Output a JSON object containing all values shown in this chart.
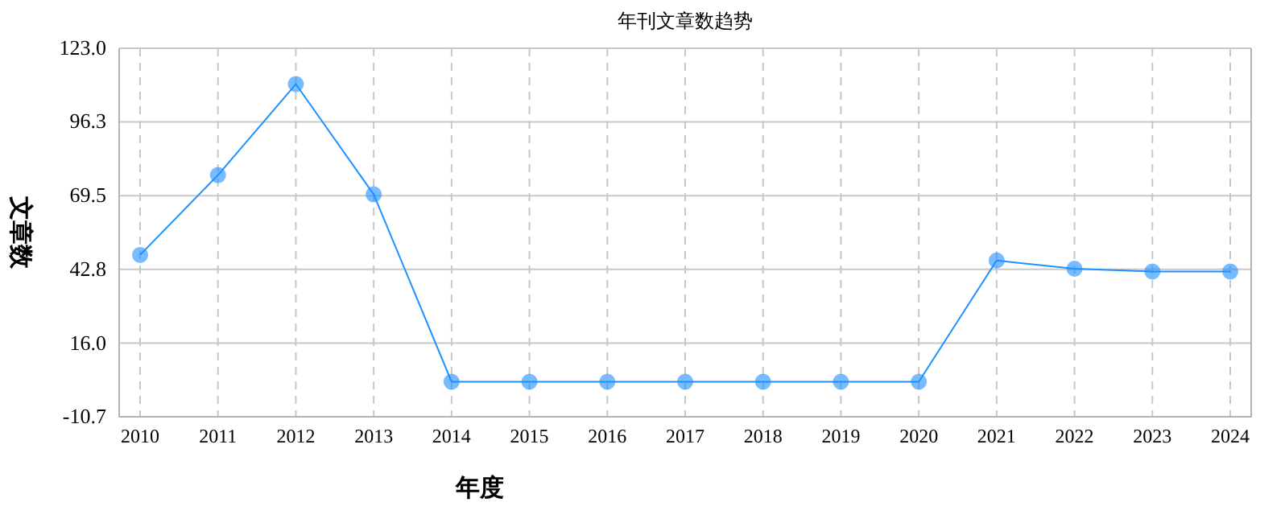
{
  "chart_data": {
    "type": "line",
    "title": "年刊文章数趋势",
    "xlabel": "年度",
    "ylabel": "文章数",
    "categories": [
      "2010",
      "2011",
      "2012",
      "2013",
      "2014",
      "2015",
      "2016",
      "2017",
      "2018",
      "2019",
      "2020",
      "2021",
      "2022",
      "2023",
      "2024"
    ],
    "series": [
      {
        "color": "#1e90ff",
        "values": [
          48,
          77,
          110,
          70,
          2,
          2,
          2,
          2,
          2,
          2,
          2,
          46,
          43,
          42,
          42
        ]
      }
    ],
    "ylim": [
      -10.7,
      123
    ],
    "yticks": [
      -10.7,
      {
        "value": 16,
        "label": "16.0"
      },
      42.8,
      69.5,
      96.3,
      {
        "value": 123,
        "label": "123.0"
      }
    ],
    "grid": true,
    "marker": "circle"
  }
}
